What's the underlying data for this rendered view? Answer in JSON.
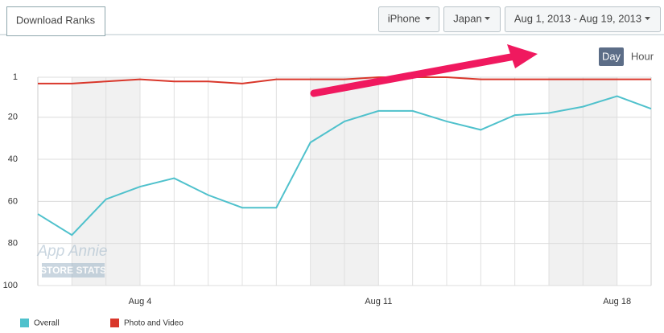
{
  "tab": "Download Ranks",
  "filters": {
    "device": "iPhone",
    "country": "Japan",
    "date_range": "Aug 1, 2013 - Aug 19, 2013"
  },
  "granularity": {
    "day": "Day",
    "hour": "Hour"
  },
  "watermark": {
    "brand": "App Annie",
    "product": "STORE STATS"
  },
  "chart_data": {
    "type": "line",
    "categories": [
      null,
      null,
      null,
      "Aug 4",
      null,
      null,
      null,
      null,
      null,
      null,
      "Aug 11",
      null,
      null,
      null,
      null,
      null,
      null,
      "Aug 18",
      null
    ],
    "series": [
      {
        "name": "Overall",
        "color": "#4fc1cc",
        "values": [
          66,
          76,
          59,
          53,
          49,
          57,
          63,
          63,
          32,
          22,
          17,
          17,
          22,
          26,
          19,
          18,
          15,
          10,
          16
        ]
      },
      {
        "name": "Photo and Video",
        "color": "#d9372b",
        "values": [
          4,
          4,
          3,
          2,
          3,
          3,
          4,
          2,
          2,
          2,
          1,
          1,
          1,
          2,
          2,
          2,
          2,
          2,
          2
        ]
      }
    ],
    "ylim": [
      1,
      100
    ],
    "yticks": [
      1,
      20,
      40,
      60,
      80,
      100
    ],
    "y_inverted": true,
    "grid": true
  }
}
